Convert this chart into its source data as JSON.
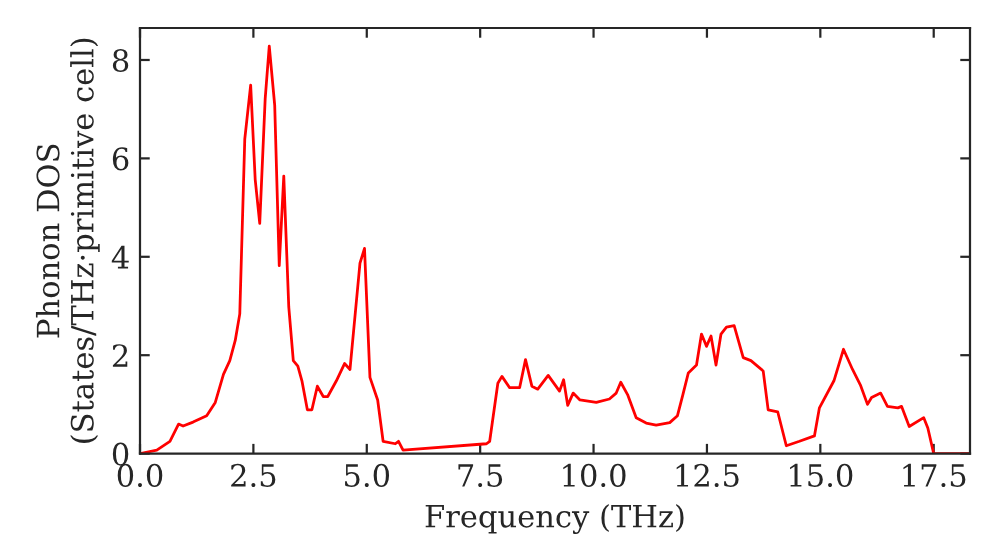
{
  "chart_data": {
    "type": "line",
    "xlabel": "Frequency (THz)",
    "ylabel": "Phonon DOS\n(States/THz·primitive cell)",
    "xlim": [
      0,
      18.3
    ],
    "ylim": [
      0,
      8.65
    ],
    "xticks": [
      {
        "value": 0,
        "label": "0.0"
      },
      2.5,
      {
        "value": 5,
        "label": "5.0"
      },
      7.5,
      {
        "value": 10,
        "label": "10.0"
      },
      12.5,
      {
        "value": 15,
        "label": "15.0"
      },
      17.5
    ],
    "yticks": [
      0,
      2,
      4,
      6,
      8
    ],
    "grid": false,
    "marker": "none",
    "line_style": "solid",
    "series": [
      {
        "color": "#ff0000",
        "x": [
          0,
          0.37,
          0.66,
          0.85,
          0.95,
          1.17,
          1.47,
          1.66,
          1.84,
          1.98,
          2.1,
          2.2,
          2.31,
          2.44,
          2.54,
          2.64,
          2.76,
          2.85,
          2.97,
          3.07,
          3.17,
          3.28,
          3.38,
          3.48,
          3.57,
          3.69,
          3.79,
          3.91,
          4.04,
          4.14,
          4.33,
          4.51,
          4.63,
          4.85,
          4.95,
          5.07,
          5.24,
          5.36,
          5.63,
          5.7,
          5.8,
          7.64,
          7.71,
          7.89,
          7.98,
          8.15,
          8.37,
          8.5,
          8.64,
          8.77,
          9.0,
          9.25,
          9.34,
          9.43,
          9.55,
          9.7,
          10.06,
          10.35,
          10.5,
          10.6,
          10.75,
          10.94,
          11.16,
          11.38,
          11.68,
          11.85,
          11.97,
          12.09,
          12.27,
          12.38,
          12.49,
          12.59,
          12.7,
          12.81,
          12.93,
          13.1,
          13.3,
          13.47,
          13.74,
          13.85,
          14.06,
          14.25,
          14.54,
          14.87,
          14.98,
          15.3,
          15.51,
          15.71,
          15.89,
          16.04,
          16.13,
          16.33,
          16.48,
          16.71,
          16.79,
          16.96,
          17.28,
          17.37,
          17.5,
          18.3
        ],
        "values": [
          0,
          0.07,
          0.25,
          0.6,
          0.56,
          0.64,
          0.77,
          1.04,
          1.61,
          1.89,
          2.3,
          2.84,
          6.39,
          7.49,
          5.57,
          4.68,
          7.21,
          8.28,
          7.08,
          3.82,
          5.64,
          2.98,
          1.89,
          1.78,
          1.48,
          0.89,
          0.89,
          1.37,
          1.16,
          1.16,
          1.48,
          1.83,
          1.71,
          3.87,
          4.17,
          1.55,
          1.09,
          0.25,
          0.2,
          0.25,
          0.07,
          0.2,
          0.25,
          1.43,
          1.57,
          1.34,
          1.34,
          1.91,
          1.37,
          1.31,
          1.59,
          1.27,
          1.5,
          0.98,
          1.23,
          1.09,
          1.04,
          1.11,
          1.23,
          1.45,
          1.2,
          0.73,
          0.62,
          0.58,
          0.63,
          0.77,
          1.2,
          1.64,
          1.8,
          2.43,
          2.18,
          2.39,
          1.8,
          2.43,
          2.57,
          2.6,
          1.95,
          1.89,
          1.68,
          0.89,
          0.85,
          0.16,
          0.25,
          0.36,
          0.93,
          1.48,
          2.12,
          1.71,
          1.38,
          1.0,
          1.14,
          1.23,
          0.96,
          0.93,
          0.96,
          0.55,
          0.73,
          0.52,
          0,
          0
        ]
      }
    ]
  }
}
